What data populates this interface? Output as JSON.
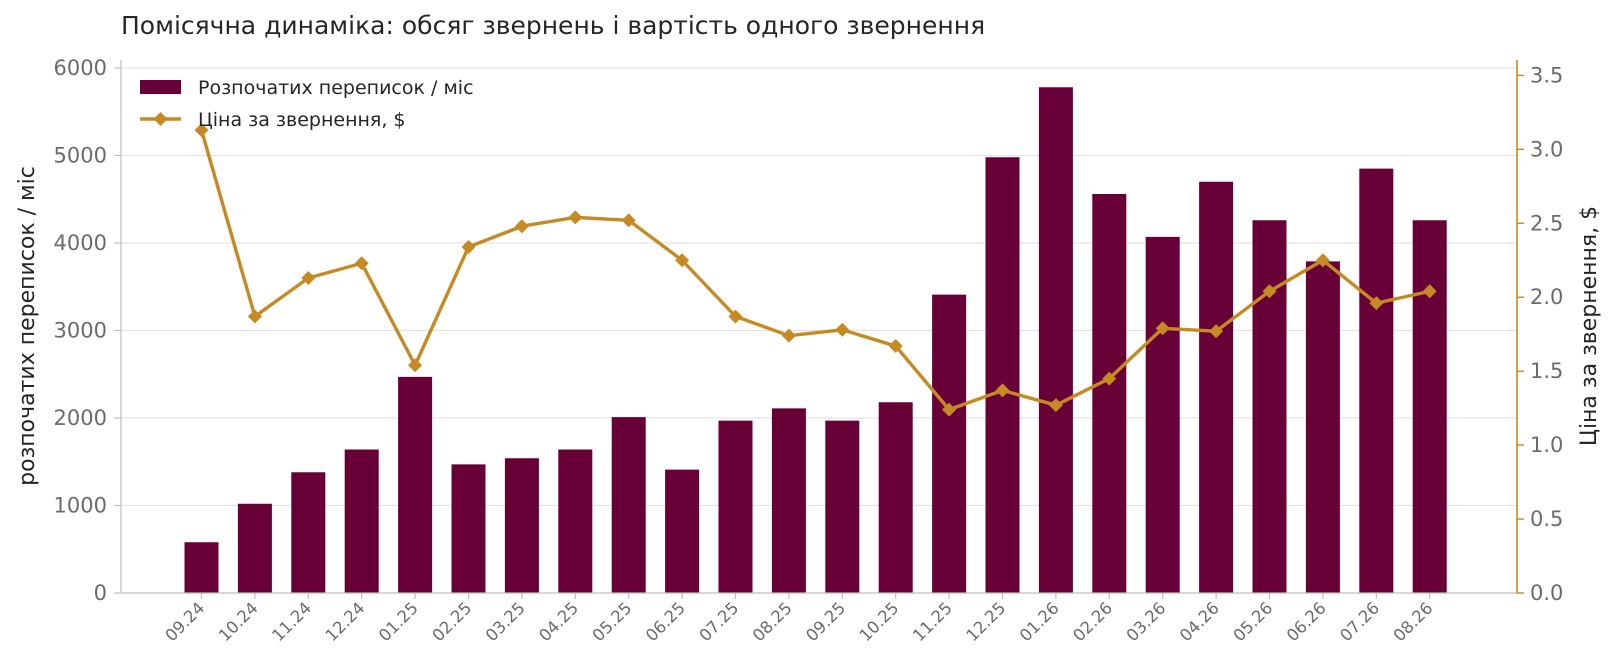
{
  "chart_data": {
    "type": "bar+line",
    "title": "Помісячна динаміка: обсяг звернень і вартість одного звернення",
    "categories": [
      "09.24",
      "10.24",
      "11.24",
      "12.24",
      "01.25",
      "02.25",
      "03.25",
      "04.25",
      "05.25",
      "06.25",
      "07.25",
      "08.25",
      "09.25",
      "10.25",
      "11.25",
      "12.25",
      "01.26",
      "02.26",
      "03.26",
      "04.26",
      "05.26",
      "06.26",
      "07.26",
      "08.26"
    ],
    "y_left": {
      "label": "розпочатих переписок / міс",
      "range": [
        0,
        6000
      ],
      "ticks": [
        "0",
        "1000",
        "2000",
        "3000",
        "4000",
        "5000",
        "6000"
      ]
    },
    "y_right": {
      "label": "Ціна за звернення, $",
      "range": [
        0,
        3.55
      ],
      "ticks": [
        "0.0",
        "0.5",
        "1.0",
        "1.5",
        "2.0",
        "2.5",
        "3.0",
        "3.5"
      ]
    },
    "grid": "horizontal",
    "legend_position": "top-left",
    "series": [
      {
        "name": "Розпочатих переписок / міс",
        "kind": "bar",
        "axis": "left",
        "color": "#680037",
        "values": [
          580,
          1020,
          1380,
          1640,
          2470,
          1470,
          1540,
          1640,
          2010,
          1410,
          1970,
          2110,
          1970,
          2180,
          3410,
          4980,
          5780,
          4560,
          4070,
          4700,
          4260,
          3790,
          4850,
          4260
        ]
      },
      {
        "name": "Ціна за звернення, $",
        "kind": "line",
        "axis": "right",
        "color": "#C68A24",
        "marker": "diamond",
        "values": [
          3.13,
          1.87,
          2.13,
          2.23,
          1.54,
          2.34,
          2.48,
          2.54,
          2.52,
          2.25,
          1.87,
          1.74,
          1.78,
          1.67,
          1.24,
          1.37,
          1.27,
          1.45,
          1.79,
          1.77,
          2.04,
          2.25,
          1.96,
          2.04
        ]
      }
    ]
  }
}
